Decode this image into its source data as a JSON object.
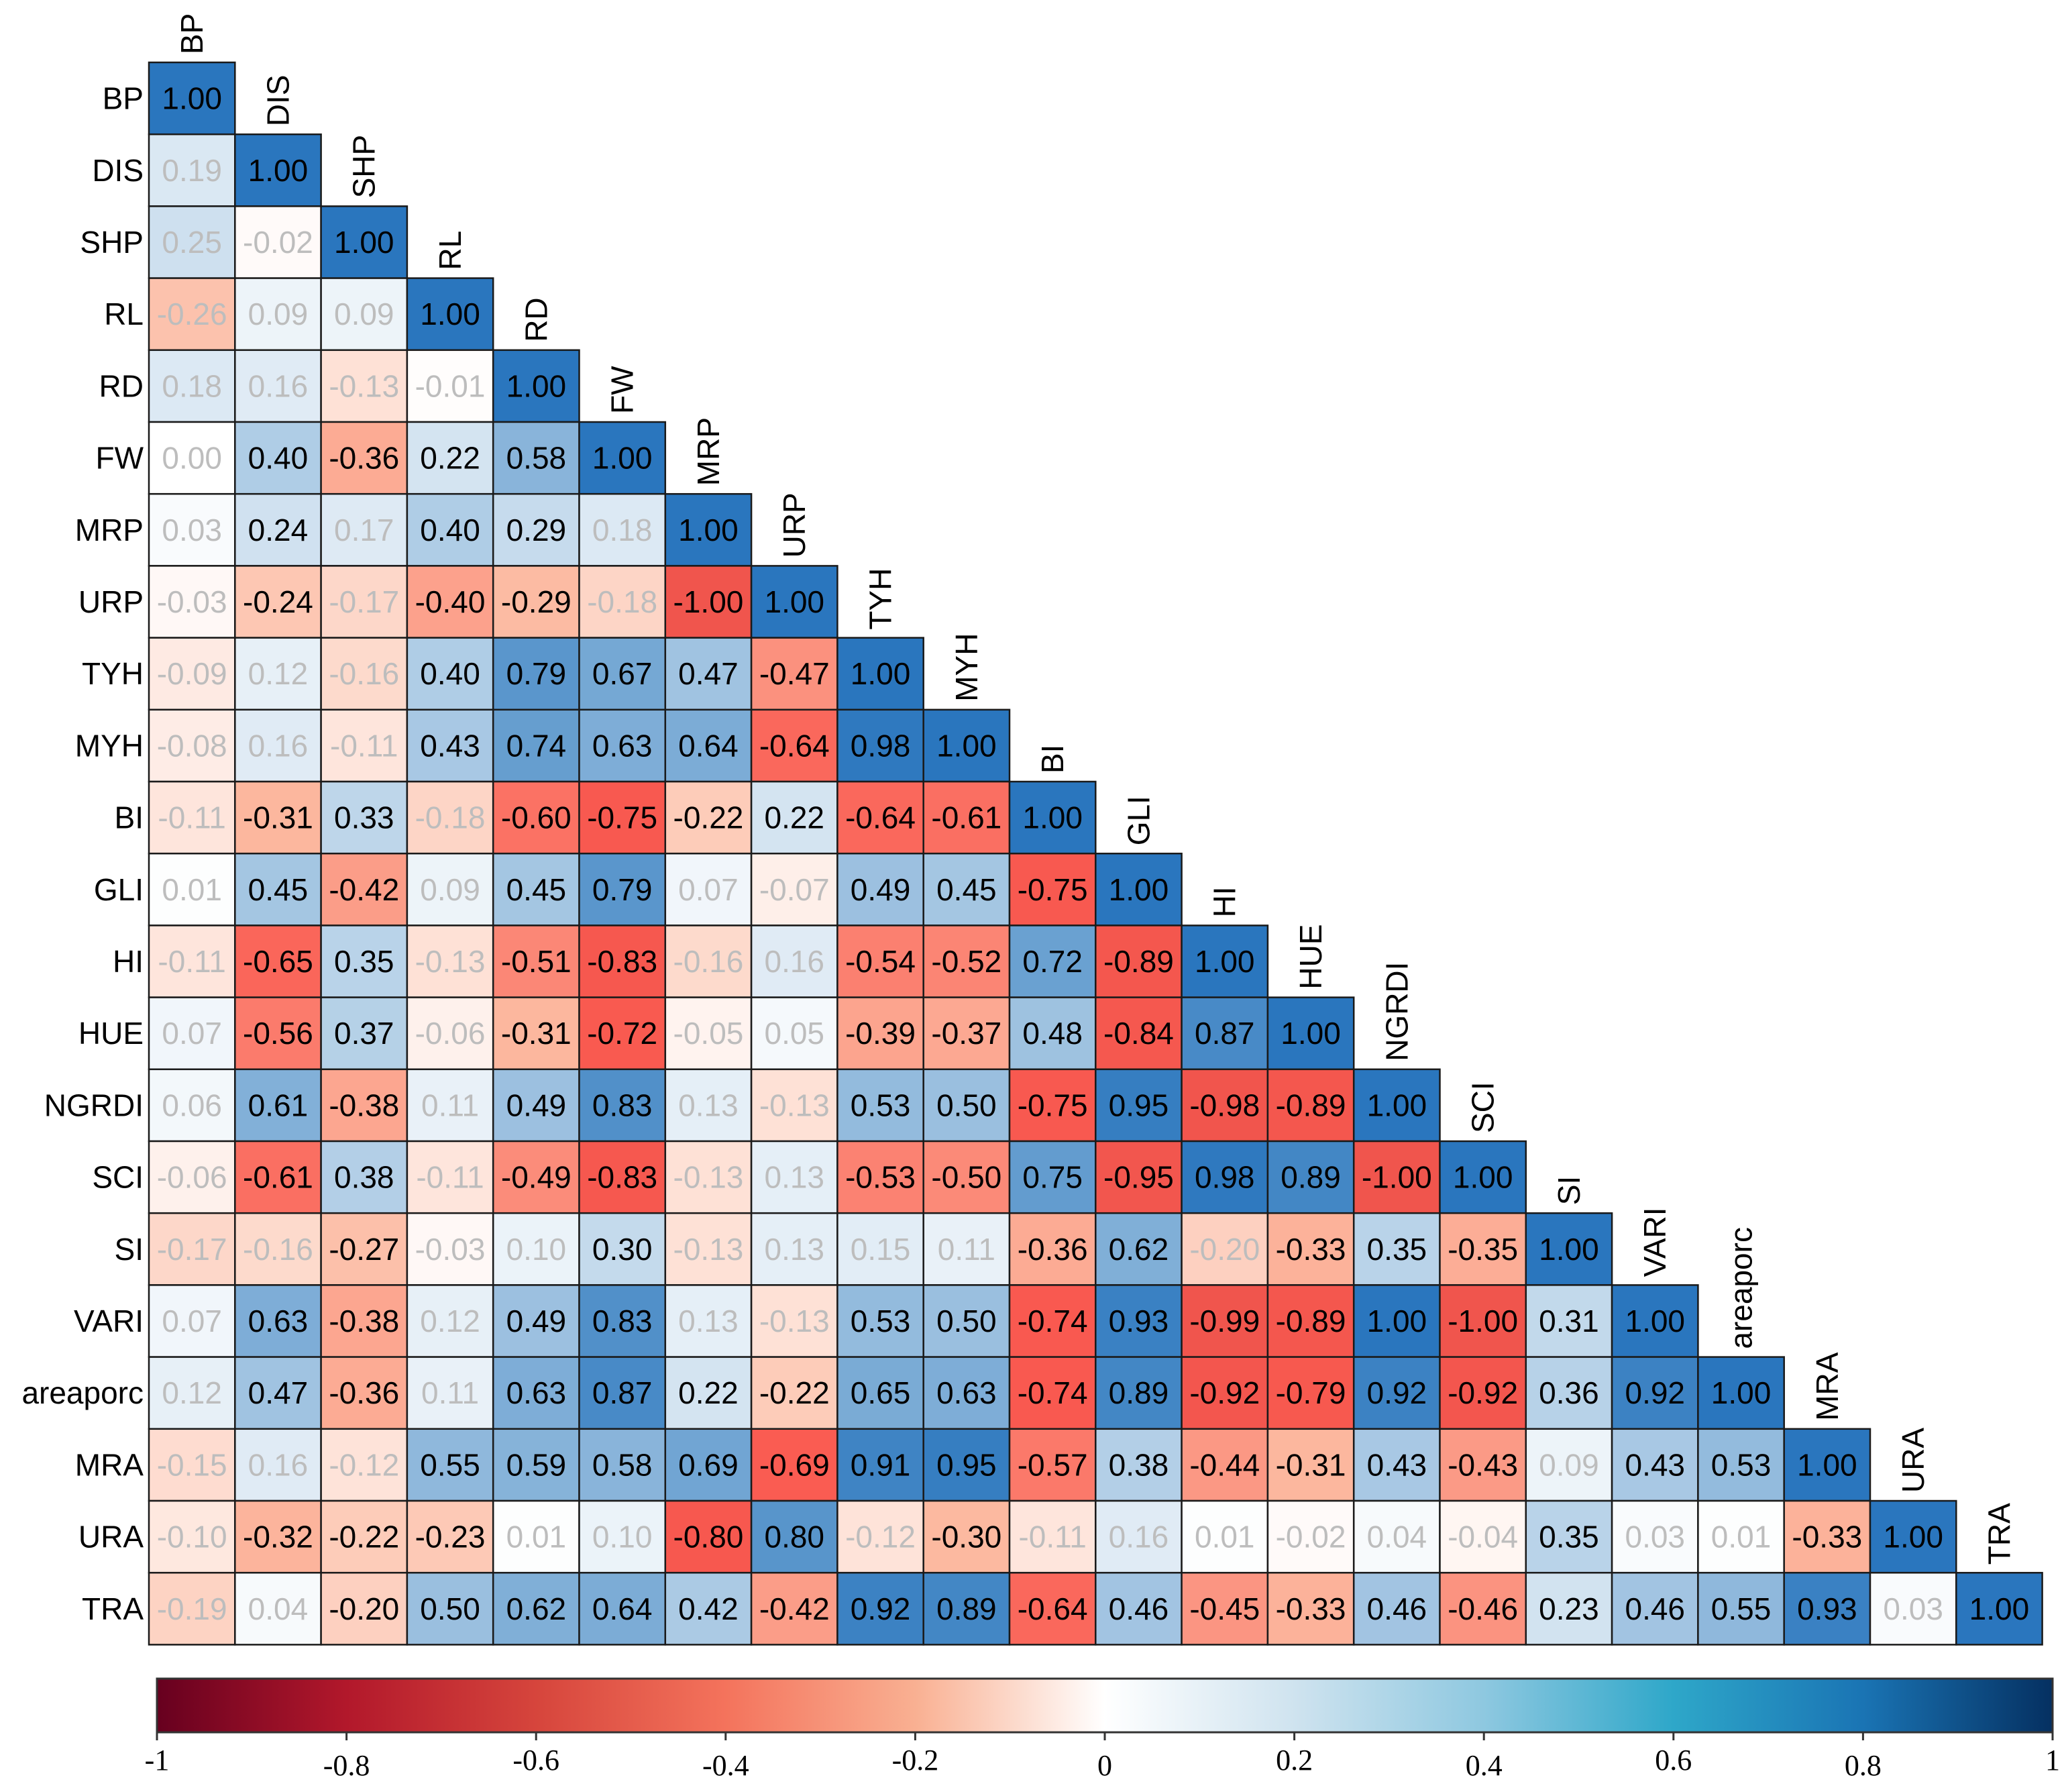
{
  "chart_data": {
    "type": "heatmap",
    "title": "",
    "variables": [
      "BP",
      "DIS",
      "SHP",
      "RL",
      "RD",
      "FW",
      "MRP",
      "URP",
      "TYH",
      "MYH",
      "BI",
      "GLI",
      "HI",
      "HUE",
      "NGRDI",
      "SCI",
      "SI",
      "VARI",
      "areaporc",
      "MRA",
      "URA",
      "TRA"
    ],
    "matrix": [
      [
        "1.00"
      ],
      [
        "0.19",
        "1.00"
      ],
      [
        "0.25",
        "-0.02",
        "1.00"
      ],
      [
        "-0.26",
        "0.09",
        "0.09",
        "1.00"
      ],
      [
        "0.18",
        "0.16",
        "-0.13",
        "-0.01",
        "1.00"
      ],
      [
        "0.00",
        "0.40",
        "-0.36",
        "0.22",
        "0.58",
        "1.00"
      ],
      [
        "0.03",
        "0.24",
        "0.17",
        "0.40",
        "0.29",
        "0.18",
        "1.00"
      ],
      [
        "-0.03",
        "-0.24",
        "-0.17",
        "-0.40",
        "-0.29",
        "-0.18",
        "-1.00",
        "1.00"
      ],
      [
        "-0.09",
        "0.12",
        "-0.16",
        "0.40",
        "0.79",
        "0.67",
        "0.47",
        "-0.47",
        "1.00"
      ],
      [
        "-0.08",
        "0.16",
        "-0.11",
        "0.43",
        "0.74",
        "0.63",
        "0.64",
        "-0.64",
        "0.98",
        "1.00"
      ],
      [
        "-0.11",
        "-0.31",
        "0.33",
        "-0.18",
        "-0.60",
        "-0.75",
        "-0.22",
        "0.22",
        "-0.64",
        "-0.61",
        "1.00"
      ],
      [
        "0.01",
        "0.45",
        "-0.42",
        "0.09",
        "0.45",
        "0.79",
        "0.07",
        "-0.07",
        "0.49",
        "0.45",
        "-0.75",
        "1.00"
      ],
      [
        "-0.11",
        "-0.65",
        "0.35",
        "-0.13",
        "-0.51",
        "-0.83",
        "-0.16",
        "0.16",
        "-0.54",
        "-0.52",
        "0.72",
        "-0.89",
        "1.00"
      ],
      [
        "0.07",
        "-0.56",
        "0.37",
        "-0.06",
        "-0.31",
        "-0.72",
        "-0.05",
        "0.05",
        "-0.39",
        "-0.37",
        "0.48",
        "-0.84",
        "0.87",
        "1.00"
      ],
      [
        "0.06",
        "0.61",
        "-0.38",
        "0.11",
        "0.49",
        "0.83",
        "0.13",
        "-0.13",
        "0.53",
        "0.50",
        "-0.75",
        "0.95",
        "-0.98",
        "-0.89",
        "1.00"
      ],
      [
        "-0.06",
        "-0.61",
        "0.38",
        "-0.11",
        "-0.49",
        "-0.83",
        "-0.13",
        "0.13",
        "-0.53",
        "-0.50",
        "0.75",
        "-0.95",
        "0.98",
        "0.89",
        "-1.00",
        "1.00"
      ],
      [
        "-0.17",
        "-0.16",
        "-0.27",
        "-0.03",
        "0.10",
        "0.30",
        "-0.13",
        "0.13",
        "0.15",
        "0.11",
        "-0.36",
        "0.62",
        "-0.20",
        "-0.33",
        "0.35",
        "-0.35",
        "1.00"
      ],
      [
        "0.07",
        "0.63",
        "-0.38",
        "0.12",
        "0.49",
        "0.83",
        "0.13",
        "-0.13",
        "0.53",
        "0.50",
        "-0.74",
        "0.93",
        "-0.99",
        "-0.89",
        "1.00",
        "-1.00",
        "0.31",
        "1.00"
      ],
      [
        "0.12",
        "0.47",
        "-0.36",
        "0.11",
        "0.63",
        "0.87",
        "0.22",
        "-0.22",
        "0.65",
        "0.63",
        "-0.74",
        "0.89",
        "-0.92",
        "-0.79",
        "0.92",
        "-0.92",
        "0.36",
        "0.92",
        "1.00"
      ],
      [
        "-0.15",
        "0.16",
        "-0.12",
        "0.55",
        "0.59",
        "0.58",
        "0.69",
        "-0.69",
        "0.91",
        "0.95",
        "-0.57",
        "0.38",
        "-0.44",
        "-0.31",
        "0.43",
        "-0.43",
        "0.09",
        "0.43",
        "0.53",
        "1.00"
      ],
      [
        "-0.10",
        "-0.32",
        "-0.22",
        "-0.23",
        "0.01",
        "0.10",
        "-0.80",
        "0.80",
        "-0.12",
        "-0.30",
        "-0.11",
        "0.16",
        "0.01",
        "-0.02",
        "0.04",
        "-0.04",
        "0.35",
        "0.03",
        "0.01",
        "-0.33",
        "1.00"
      ],
      [
        "-0.19",
        "0.04",
        "-0.20",
        "0.50",
        "0.62",
        "0.64",
        "0.42",
        "-0.42",
        "0.92",
        "0.89",
        "-0.64",
        "0.46",
        "-0.45",
        "-0.33",
        "0.46",
        "-0.46",
        "0.23",
        "0.46",
        "0.55",
        "0.93",
        "0.03",
        "1.00"
      ]
    ],
    "low_significance_cells": [
      [
        1,
        0
      ],
      [
        2,
        0
      ],
      [
        2,
        1
      ],
      [
        3,
        0
      ],
      [
        3,
        1
      ],
      [
        3,
        2
      ],
      [
        4,
        0
      ],
      [
        4,
        1
      ],
      [
        4,
        2
      ],
      [
        4,
        3
      ],
      [
        5,
        0
      ],
      [
        6,
        0
      ],
      [
        6,
        2
      ],
      [
        6,
        5
      ],
      [
        7,
        0
      ],
      [
        7,
        2
      ],
      [
        7,
        5
      ],
      [
        8,
        0
      ],
      [
        8,
        1
      ],
      [
        8,
        2
      ],
      [
        9,
        0
      ],
      [
        9,
        1
      ],
      [
        9,
        2
      ],
      [
        10,
        0
      ],
      [
        10,
        3
      ],
      [
        11,
        0
      ],
      [
        11,
        3
      ],
      [
        11,
        6
      ],
      [
        11,
        7
      ],
      [
        12,
        0
      ],
      [
        12,
        3
      ],
      [
        12,
        6
      ],
      [
        12,
        7
      ],
      [
        13,
        0
      ],
      [
        13,
        3
      ],
      [
        13,
        6
      ],
      [
        13,
        7
      ],
      [
        14,
        0
      ],
      [
        14,
        3
      ],
      [
        14,
        6
      ],
      [
        14,
        7
      ],
      [
        15,
        0
      ],
      [
        15,
        3
      ],
      [
        15,
        6
      ],
      [
        15,
        7
      ],
      [
        16,
        0
      ],
      [
        16,
        1
      ],
      [
        16,
        3
      ],
      [
        16,
        4
      ],
      [
        16,
        6
      ],
      [
        16,
        7
      ],
      [
        16,
        8
      ],
      [
        16,
        9
      ],
      [
        16,
        12
      ],
      [
        17,
        0
      ],
      [
        17,
        3
      ],
      [
        17,
        6
      ],
      [
        17,
        7
      ],
      [
        18,
        0
      ],
      [
        18,
        3
      ],
      [
        19,
        0
      ],
      [
        19,
        1
      ],
      [
        19,
        2
      ],
      [
        19,
        16
      ],
      [
        20,
        0
      ],
      [
        20,
        4
      ],
      [
        20,
        5
      ],
      [
        20,
        8
      ],
      [
        20,
        10
      ],
      [
        20,
        11
      ],
      [
        20,
        12
      ],
      [
        20,
        13
      ],
      [
        20,
        14
      ],
      [
        20,
        15
      ],
      [
        20,
        17
      ],
      [
        20,
        18
      ],
      [
        21,
        0
      ],
      [
        21,
        1
      ],
      [
        21,
        20
      ]
    ],
    "colorbar": {
      "ticks": [
        "-1",
        "-0.8",
        "-0.6",
        "-0.4",
        "-0.2",
        "0",
        "0.2",
        "0.4",
        "0.6",
        "0.8",
        "1"
      ],
      "range": [
        -1,
        1
      ]
    },
    "colors": {
      "neg_strong": "#b2182b",
      "neg_mid": "#fa5a50",
      "neg_light": "#fcb9a0",
      "zero": "#ffffff",
      "pos_light": "#c4daec",
      "pos_mid": "#6fa4d2",
      "pos_strong": "#2a76be",
      "bar_min": "#67001f",
      "bar_max": "#053061",
      "faded_text": "#bdbdbd"
    }
  }
}
